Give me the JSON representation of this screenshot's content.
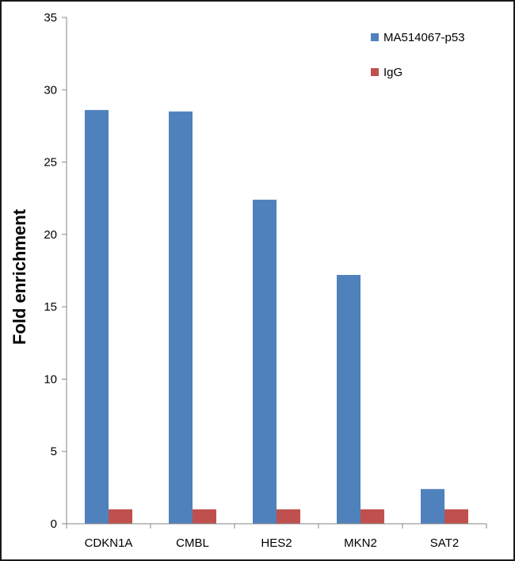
{
  "chart_data": {
    "type": "bar",
    "title": "",
    "xlabel": "",
    "ylabel": "Fold enrichment",
    "ylim": [
      0,
      35
    ],
    "yticks": [
      0,
      5,
      10,
      15,
      20,
      25,
      30,
      35
    ],
    "grid": false,
    "legend_position": "top-right",
    "categories": [
      "CDKN1A",
      "CMBL",
      "HES2",
      "MKN2",
      "SAT2"
    ],
    "series": [
      {
        "name": "MA514067-p53",
        "color": "#4f81bd",
        "values": [
          28.6,
          28.5,
          22.4,
          17.2,
          2.4
        ]
      },
      {
        "name": "IgG",
        "color": "#c0504d",
        "values": [
          1.0,
          1.0,
          1.0,
          1.0,
          1.0
        ]
      }
    ]
  }
}
